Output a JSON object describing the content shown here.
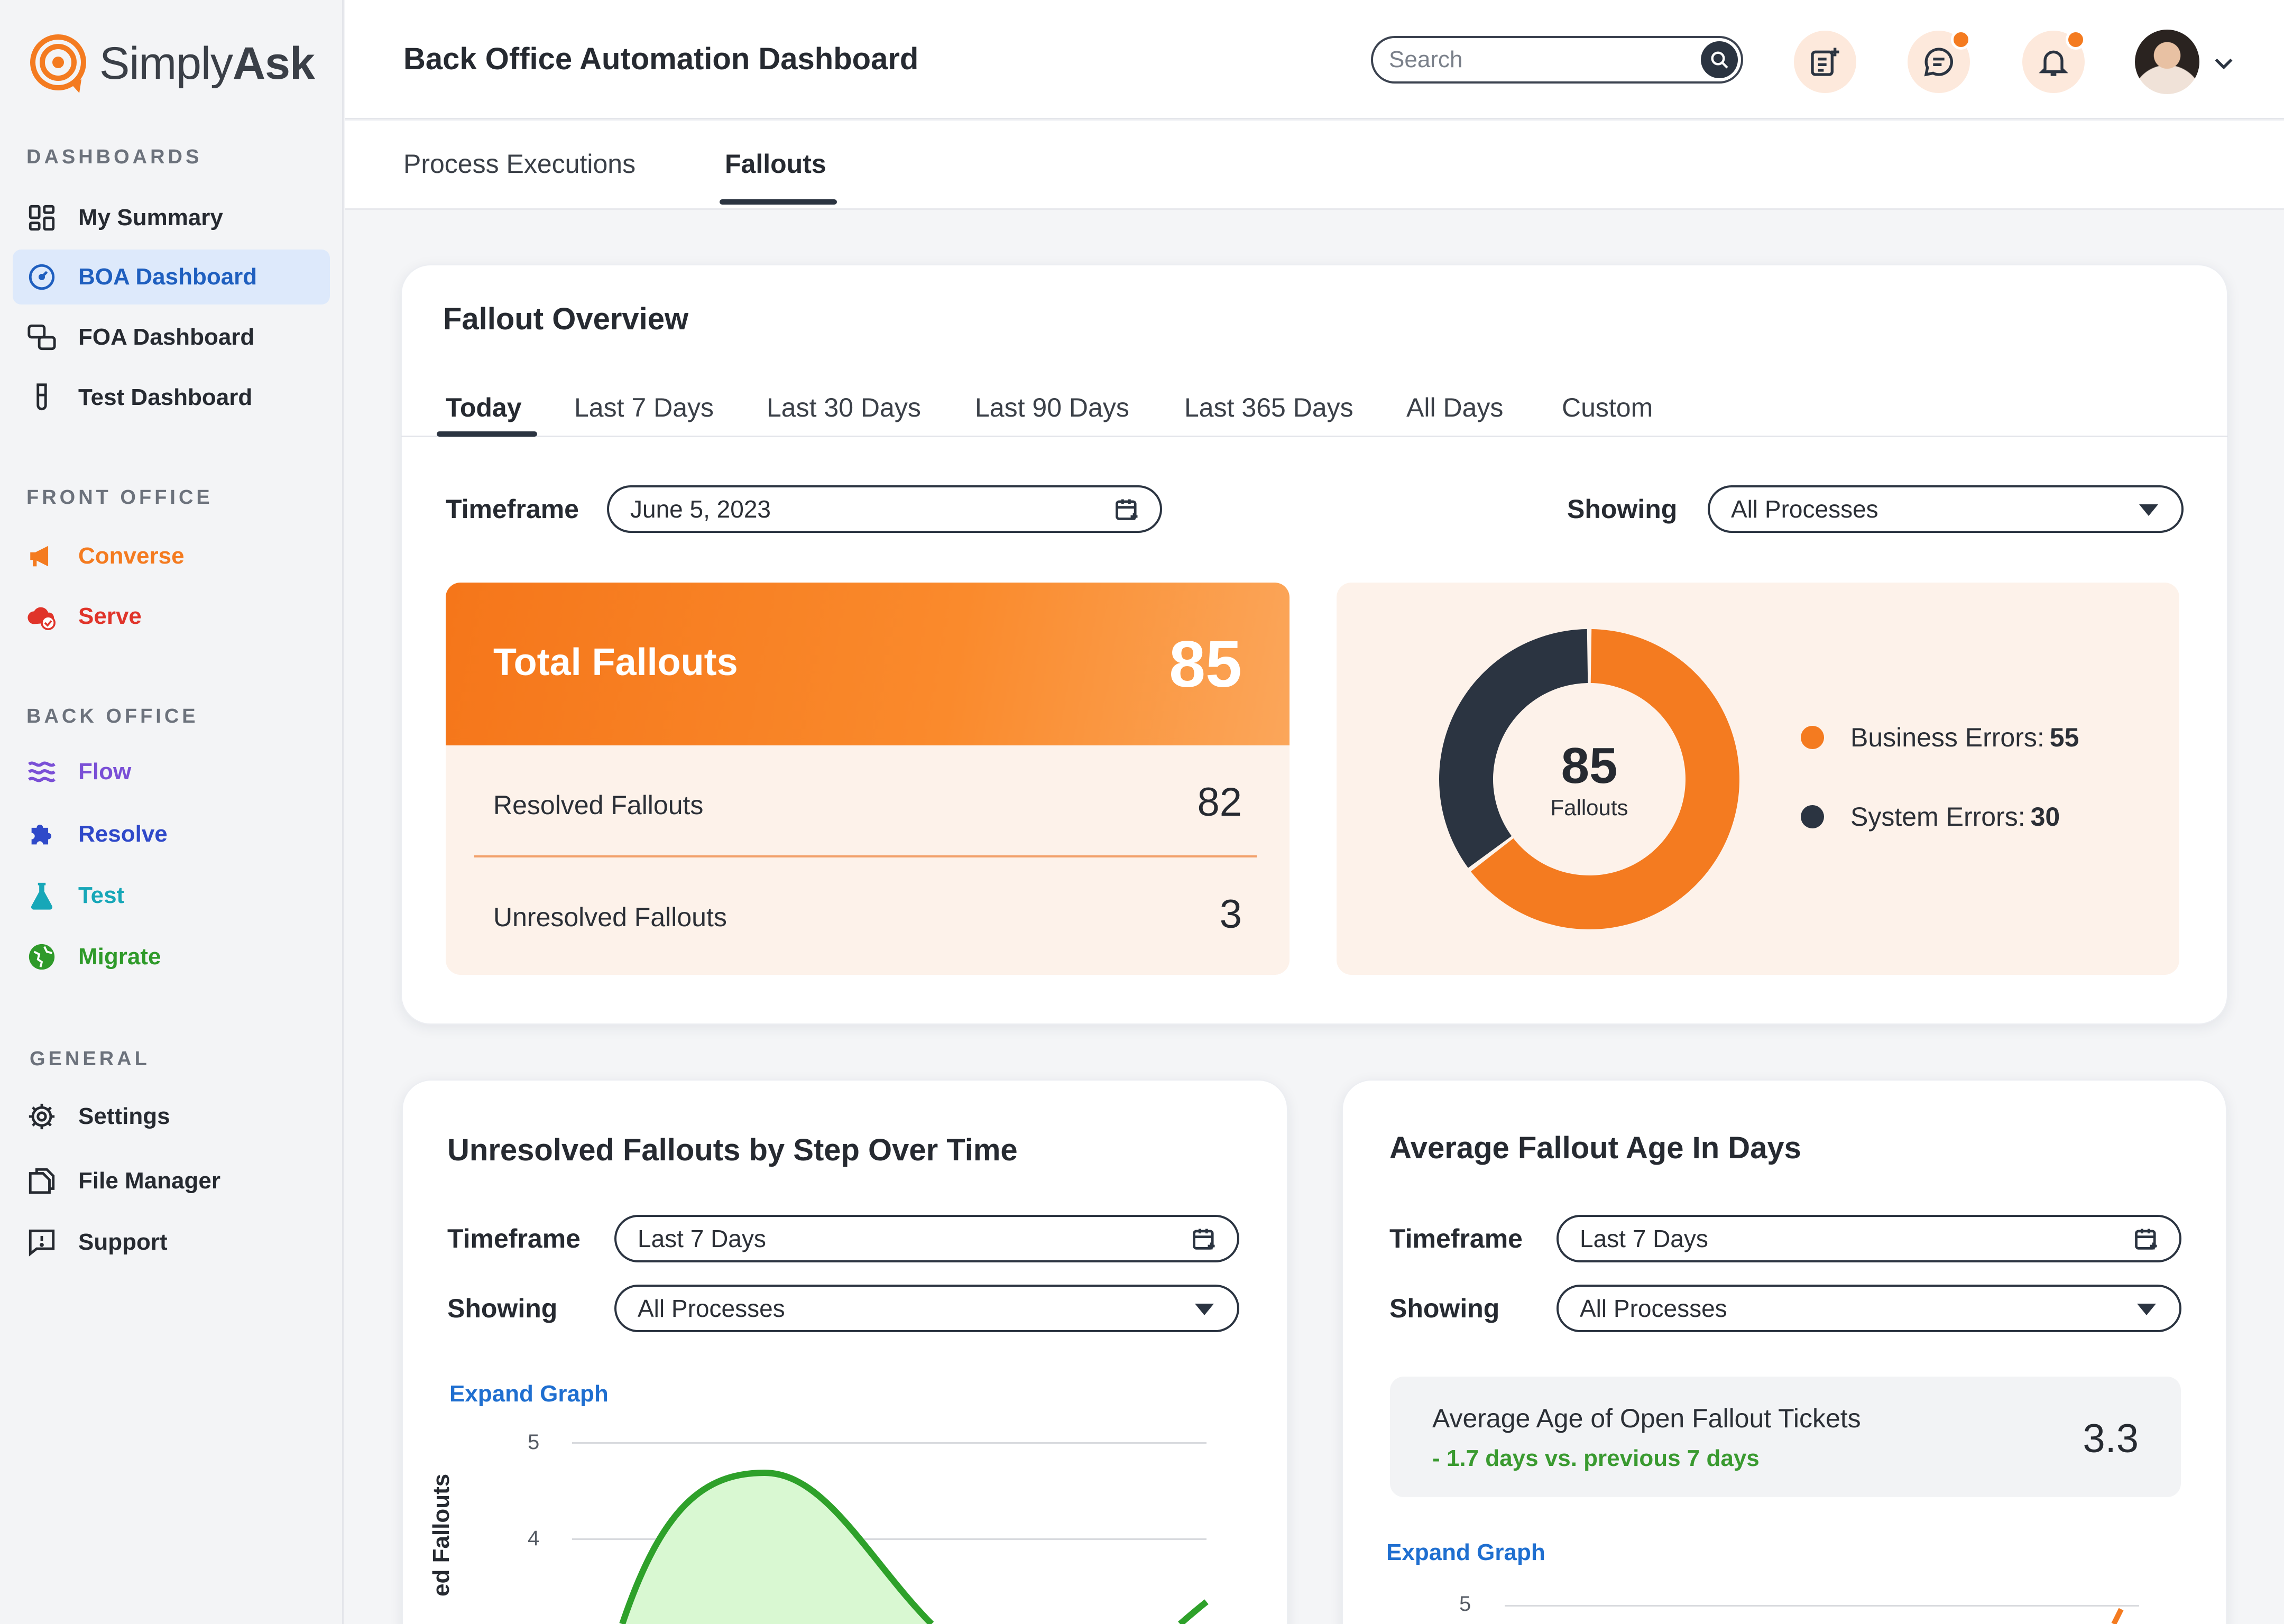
{
  "brand": {
    "name_regular": "Simply",
    "name_bold": "Ask",
    "accent": "#f47b20"
  },
  "sidebar": {
    "sections": [
      {
        "title": "DASHBOARDS"
      },
      {
        "title": "FRONT OFFICE"
      },
      {
        "title": "BACK OFFICE"
      },
      {
        "title": "GENERAL"
      }
    ],
    "items": [
      {
        "label": "My Summary",
        "icon": "grid-icon",
        "color": "#262a31"
      },
      {
        "label": "BOA Dashboard",
        "icon": "gauge-icon",
        "color": "#1f5fbf",
        "active": true
      },
      {
        "label": "FOA Dashboard",
        "icon": "chat-link-icon",
        "color": "#262a31"
      },
      {
        "label": "Test Dashboard",
        "icon": "test-tube-icon",
        "color": "#262a31"
      },
      {
        "label": "Converse",
        "icon": "megaphone-icon",
        "color": "#f47b20"
      },
      {
        "label": "Serve",
        "icon": "cloud-check-icon",
        "color": "#e0342a"
      },
      {
        "label": "Flow",
        "icon": "waves-icon",
        "color": "#7a4fd6"
      },
      {
        "label": "Resolve",
        "icon": "puzzle-icon",
        "color": "#2f49c9"
      },
      {
        "label": "Test",
        "icon": "flask-icon",
        "color": "#17a7b8"
      },
      {
        "label": "Migrate",
        "icon": "globe-icon",
        "color": "#2f9a2a"
      },
      {
        "label": "Settings",
        "icon": "gear-icon",
        "color": "#262a31"
      },
      {
        "label": "File Manager",
        "icon": "files-icon",
        "color": "#262a31"
      },
      {
        "label": "Support",
        "icon": "support-icon",
        "color": "#262a31"
      }
    ]
  },
  "header": {
    "title": "Back Office Automation Dashboard",
    "search_placeholder": "Search"
  },
  "tabs": [
    {
      "label": "Process Executions"
    },
    {
      "label": "Fallouts",
      "active": true
    }
  ],
  "overview": {
    "title": "Fallout Overview",
    "ranges": [
      "Today",
      "Last 7 Days",
      "Last 30 Days",
      "Last 90 Days",
      "Last 365 Days",
      "All Days",
      "Custom"
    ],
    "active_range": "Today",
    "timeframe_label": "Timeframe",
    "timeframe_value": "June 5, 2023",
    "showing_label": "Showing",
    "showing_value": "All Processes",
    "total_label": "Total Fallouts",
    "total_value": "85",
    "resolved_label": "Resolved Fallouts",
    "resolved_value": "82",
    "unresolved_label": "Unresolved Fallouts",
    "unresolved_value": "3",
    "donut_center_value": "85",
    "donut_center_label": "Fallouts",
    "legend": [
      {
        "label": "Business Errors:",
        "value": "55",
        "color": "#f47b20"
      },
      {
        "label": "System Errors:",
        "value": "30",
        "color": "#2b3441"
      }
    ]
  },
  "chart_data": {
    "type": "pie",
    "categories": [
      "Business Errors",
      "System Errors"
    ],
    "values": [
      55,
      30
    ],
    "colors": [
      "#f47b20",
      "#2b3441"
    ],
    "donut": true
  },
  "unresolved_card": {
    "title": "Unresolved Fallouts by Step Over Time",
    "timeframe_label": "Timeframe",
    "timeframe_value": "Last 7 Days",
    "showing_label": "Showing",
    "showing_value": "All Processes",
    "expand_label": "Expand Graph",
    "y_ticks": [
      "5",
      "4"
    ],
    "y_axis_label": "ed Fallouts"
  },
  "avg_card": {
    "title": "Average Fallout Age In Days",
    "timeframe_label": "Timeframe",
    "timeframe_value": "Last 7 Days",
    "showing_label": "Showing",
    "showing_value": "All Processes",
    "summary_title": "Average Age of Open Fallout Tickets",
    "summary_delta": "- 1.7 days vs. previous 7 days",
    "summary_value": "3.3",
    "expand_label": "Expand Graph",
    "y_ticks": [
      "5"
    ]
  }
}
